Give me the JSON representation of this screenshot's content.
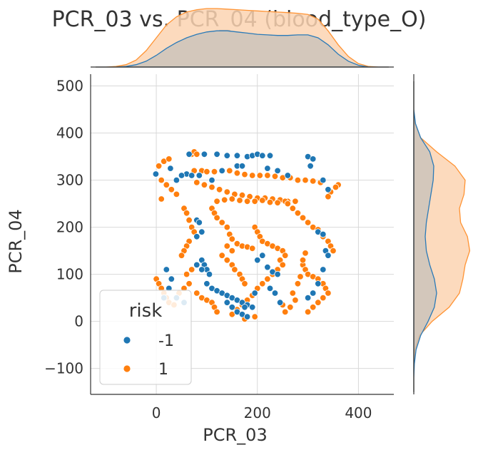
{
  "chart_data": {
    "type": "scatter",
    "title": "PCR_03 vs. PCR_04 (blood_type_O)",
    "xlabel": "PCR_03",
    "ylabel": "PCR_04",
    "xlim": [
      -130,
      470
    ],
    "ylim": [
      -155,
      525
    ],
    "xticks": [
      0,
      200,
      400
    ],
    "xtick_labels": [
      "0",
      "200",
      "400"
    ],
    "yticks": [
      -100,
      0,
      100,
      200,
      300,
      400,
      500
    ],
    "ytick_labels": [
      "−100",
      "0",
      "100",
      "200",
      "300",
      "400",
      "500"
    ],
    "grid": true,
    "legend": {
      "title": "risk",
      "placement": "bottom-left",
      "entries": [
        {
          "label": "-1",
          "color": "#1f77b4"
        },
        {
          "label": "1",
          "color": "#ff7f0e"
        }
      ]
    },
    "marginals": {
      "type": "kde",
      "x_top": true,
      "y_right": true
    },
    "series": [
      {
        "name": "-1",
        "color": "#1f77b4",
        "points": [
          [
            -1,
            313
          ],
          [
            28,
            325
          ],
          [
            60,
            313
          ],
          [
            65,
            355
          ],
          [
            95,
            355
          ],
          [
            120,
            355
          ],
          [
            140,
            352
          ],
          [
            160,
            352
          ],
          [
            180,
            350
          ],
          [
            190,
            352
          ],
          [
            200,
            355
          ],
          [
            210,
            352
          ],
          [
            225,
            352
          ],
          [
            40,
            300
          ],
          [
            50,
            310
          ],
          [
            70,
            310
          ],
          [
            85,
            310
          ],
          [
            80,
            215
          ],
          [
            85,
            210
          ],
          [
            90,
            190
          ],
          [
            80,
            180
          ],
          [
            90,
            130
          ],
          [
            95,
            120
          ],
          [
            100,
            110
          ],
          [
            105,
            100
          ],
          [
            90,
            110
          ],
          [
            80,
            120
          ],
          [
            100,
            80
          ],
          [
            110,
            70
          ],
          [
            120,
            65
          ],
          [
            130,
            60
          ],
          [
            140,
            55
          ],
          [
            150,
            50
          ],
          [
            160,
            45
          ],
          [
            170,
            40
          ],
          [
            180,
            35
          ],
          [
            190,
            30
          ],
          [
            195,
            60
          ],
          [
            140,
            40
          ],
          [
            150,
            30
          ],
          [
            160,
            20
          ],
          [
            170,
            15
          ],
          [
            180,
            10
          ],
          [
            175,
            30
          ],
          [
            200,
            130
          ],
          [
            210,
            140
          ],
          [
            220,
            115
          ],
          [
            230,
            105
          ],
          [
            240,
            100
          ],
          [
            225,
            70
          ],
          [
            235,
            60
          ],
          [
            245,
            40
          ],
          [
            300,
            350
          ],
          [
            310,
            345
          ],
          [
            305,
            330
          ],
          [
            330,
            300
          ],
          [
            340,
            280
          ],
          [
            320,
            190
          ],
          [
            330,
            185
          ],
          [
            335,
            150
          ],
          [
            340,
            140
          ],
          [
            330,
            110
          ],
          [
            320,
            80
          ],
          [
            310,
            60
          ],
          [
            300,
            50
          ],
          [
            20,
            110
          ],
          [
            30,
            90
          ],
          [
            25,
            70
          ],
          [
            15,
            50
          ],
          [
            40,
            50
          ],
          [
            55,
            40
          ],
          [
            110,
            300
          ],
          [
            130,
            320
          ],
          [
            160,
            330
          ],
          [
            170,
            330
          ],
          [
            220,
            325
          ],
          [
            240,
            320
          ],
          [
            260,
            310
          ]
        ]
      },
      {
        "name": "1",
        "color": "#ff7f0e",
        "points": [
          [
            5,
            330
          ],
          [
            15,
            340
          ],
          [
            25,
            345
          ],
          [
            10,
            300
          ],
          [
            20,
            290
          ],
          [
            30,
            280
          ],
          [
            40,
            270
          ],
          [
            10,
            260
          ],
          [
            70,
            355
          ],
          [
            75,
            360
          ],
          [
            80,
            355
          ],
          [
            75,
            320
          ],
          [
            90,
            320
          ],
          [
            100,
            318
          ],
          [
            115,
            318
          ],
          [
            130,
            320
          ],
          [
            145,
            320
          ],
          [
            160,
            315
          ],
          [
            175,
            312
          ],
          [
            190,
            310
          ],
          [
            205,
            310
          ],
          [
            220,
            310
          ],
          [
            235,
            308
          ],
          [
            250,
            305
          ],
          [
            265,
            305
          ],
          [
            280,
            300
          ],
          [
            295,
            300
          ],
          [
            310,
            298
          ],
          [
            325,
            295
          ],
          [
            80,
            295
          ],
          [
            95,
            290
          ],
          [
            110,
            285
          ],
          [
            125,
            280
          ],
          [
            140,
            275
          ],
          [
            155,
            270
          ],
          [
            170,
            268
          ],
          [
            185,
            265
          ],
          [
            200,
            262
          ],
          [
            215,
            262
          ],
          [
            230,
            260
          ],
          [
            245,
            258
          ],
          [
            260,
            255
          ],
          [
            275,
            255
          ],
          [
            120,
            255
          ],
          [
            135,
            258
          ],
          [
            150,
            260
          ],
          [
            165,
            257
          ],
          [
            180,
            255
          ],
          [
            195,
            255
          ],
          [
            210,
            257
          ],
          [
            225,
            253
          ],
          [
            240,
            252
          ],
          [
            255,
            255
          ],
          [
            55,
            240
          ],
          [
            60,
            230
          ],
          [
            65,
            215
          ],
          [
            70,
            200
          ],
          [
            75,
            190
          ],
          [
            65,
            170
          ],
          [
            60,
            160
          ],
          [
            55,
            150
          ],
          [
            50,
            140
          ],
          [
            110,
            240
          ],
          [
            115,
            230
          ],
          [
            120,
            220
          ],
          [
            130,
            210
          ],
          [
            140,
            200
          ],
          [
            145,
            185
          ],
          [
            150,
            175
          ],
          [
            160,
            165
          ],
          [
            170,
            160
          ],
          [
            180,
            158
          ],
          [
            190,
            155
          ],
          [
            195,
            200
          ],
          [
            200,
            190
          ],
          [
            205,
            180
          ],
          [
            210,
            170
          ],
          [
            220,
            165
          ],
          [
            230,
            160
          ],
          [
            240,
            155
          ],
          [
            250,
            150
          ],
          [
            260,
            250
          ],
          [
            270,
            240
          ],
          [
            280,
            230
          ],
          [
            290,
            220
          ],
          [
            300,
            210
          ],
          [
            310,
            200
          ],
          [
            320,
            195
          ],
          [
            330,
            180
          ],
          [
            340,
            170
          ],
          [
            345,
            160
          ],
          [
            350,
            150
          ],
          [
            360,
            290
          ],
          [
            355,
            285
          ],
          [
            345,
            275
          ],
          [
            340,
            265
          ],
          [
            290,
            120
          ],
          [
            295,
            110
          ],
          [
            300,
            100
          ],
          [
            310,
            95
          ],
          [
            320,
            90
          ],
          [
            330,
            80
          ],
          [
            335,
            70
          ],
          [
            340,
            60
          ],
          [
            330,
            50
          ],
          [
            320,
            40
          ],
          [
            310,
            30
          ],
          [
            300,
            20
          ],
          [
            250,
            150
          ],
          [
            255,
            140
          ],
          [
            245,
            130
          ],
          [
            250,
            120
          ],
          [
            240,
            110
          ],
          [
            230,
            100
          ],
          [
            220,
            90
          ],
          [
            210,
            80
          ],
          [
            200,
            70
          ],
          [
            190,
            55
          ],
          [
            180,
            45
          ],
          [
            170,
            35
          ],
          [
            160,
            25
          ],
          [
            150,
            15
          ],
          [
            175,
            5
          ],
          [
            195,
            10
          ],
          [
            0,
            90
          ],
          [
            5,
            80
          ],
          [
            10,
            70
          ],
          [
            15,
            60
          ],
          [
            20,
            50
          ],
          [
            25,
            40
          ],
          [
            35,
            35
          ],
          [
            45,
            60
          ],
          [
            55,
            70
          ],
          [
            65,
            80
          ],
          [
            60,
            100
          ],
          [
            70,
            110
          ],
          [
            80,
            60
          ],
          [
            90,
            50
          ],
          [
            100,
            45
          ],
          [
            110,
            40
          ],
          [
            115,
            30
          ],
          [
            120,
            20
          ],
          [
            130,
            140
          ],
          [
            140,
            130
          ],
          [
            150,
            120
          ],
          [
            155,
            110
          ],
          [
            165,
            100
          ],
          [
            170,
            90
          ],
          [
            175,
            80
          ],
          [
            140,
            160
          ],
          [
            150,
            150
          ],
          [
            270,
            60
          ],
          [
            275,
            45
          ],
          [
            265,
            30
          ],
          [
            255,
            20
          ],
          [
            250,
            35
          ],
          [
            280,
            80
          ],
          [
            285,
            95
          ],
          [
            290,
            130
          ],
          [
            295,
            145
          ]
        ]
      }
    ],
    "marginal_x": {
      "grid": [
        -120,
        -100,
        -80,
        -60,
        -40,
        -20,
        0,
        20,
        40,
        60,
        80,
        100,
        120,
        140,
        160,
        180,
        200,
        220,
        240,
        260,
        280,
        300,
        320,
        340,
        360,
        380,
        400,
        420,
        440,
        460
      ],
      "series": [
        {
          "name": "-1",
          "density": [
            0.0,
            0.0,
            0.0,
            0.01,
            0.04,
            0.1,
            0.2,
            0.32,
            0.42,
            0.5,
            0.56,
            0.6,
            0.62,
            0.62,
            0.6,
            0.58,
            0.56,
            0.55,
            0.54,
            0.54,
            0.55,
            0.55,
            0.5,
            0.38,
            0.22,
            0.1,
            0.03,
            0.0,
            0.0,
            0.0
          ]
        },
        {
          "name": "1",
          "density": [
            0.0,
            0.0,
            0.01,
            0.04,
            0.12,
            0.28,
            0.5,
            0.72,
            0.86,
            0.94,
            0.98,
            1.0,
            1.0,
            0.99,
            0.98,
            0.97,
            0.96,
            0.95,
            0.94,
            0.93,
            0.92,
            0.9,
            0.82,
            0.62,
            0.38,
            0.18,
            0.06,
            0.01,
            0.0,
            0.0
          ]
        }
      ]
    },
    "marginal_y": {
      "grid": [
        -150,
        -120,
        -90,
        -60,
        -30,
        0,
        30,
        60,
        90,
        120,
        150,
        180,
        210,
        240,
        270,
        300,
        330,
        360,
        390,
        420,
        450,
        480,
        510
      ],
      "series": [
        {
          "name": "-1",
          "density": [
            0.0,
            0.0,
            0.01,
            0.04,
            0.12,
            0.25,
            0.36,
            0.4,
            0.36,
            0.28,
            0.22,
            0.2,
            0.22,
            0.26,
            0.3,
            0.34,
            0.35,
            0.28,
            0.12,
            0.03,
            0.0,
            0.0,
            0.0
          ]
        },
        {
          "name": "1",
          "density": [
            0.0,
            0.0,
            0.0,
            0.02,
            0.1,
            0.32,
            0.62,
            0.8,
            0.86,
            0.9,
            0.98,
            0.94,
            0.82,
            0.8,
            0.88,
            0.9,
            0.72,
            0.4,
            0.12,
            0.02,
            0.0,
            0.0,
            0.0
          ]
        }
      ]
    }
  }
}
